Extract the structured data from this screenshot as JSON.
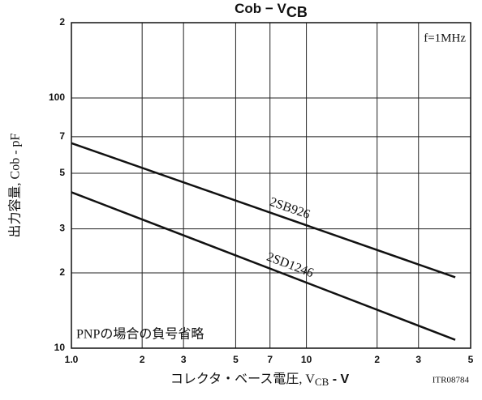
{
  "chart_data": {
    "type": "line",
    "title": {
      "text": "Cob  −  V",
      "subscript": "CB"
    },
    "y_label": "出力容量, Cob - pF",
    "x_label": {
      "text": "コレクタ・ベース電圧, V",
      "subscript": "CB",
      "suffix": " - V"
    },
    "annotations": [
      "f=1MHz",
      "PNPの場合の負号省略",
      "ITR08784"
    ],
    "log_x": true,
    "log_y": true,
    "grid": true,
    "xlim": [
      1,
      50
    ],
    "ylim": [
      10,
      200
    ],
    "xticks": [
      {
        "value": 1,
        "label": "1.0"
      },
      2,
      3,
      5,
      7,
      10,
      {
        "value": 20,
        "label": "2"
      },
      {
        "value": 30,
        "label": "3"
      },
      {
        "value": 50,
        "label": "5"
      }
    ],
    "yticks": [
      10,
      {
        "value": 20,
        "label": "2"
      },
      {
        "value": 30,
        "label": "3"
      },
      {
        "value": 50,
        "label": "5"
      },
      {
        "value": 70,
        "label": "7"
      },
      100,
      {
        "value": 200,
        "label": "2"
      }
    ],
    "x": [
      1,
      43
    ],
    "series": [
      {
        "name": "2SB926",
        "color": "#111111",
        "values": [
          66,
          19.2
        ]
      },
      {
        "name": "2SD1246",
        "color": "#111111",
        "values": [
          42,
          10.8
        ]
      }
    ]
  }
}
